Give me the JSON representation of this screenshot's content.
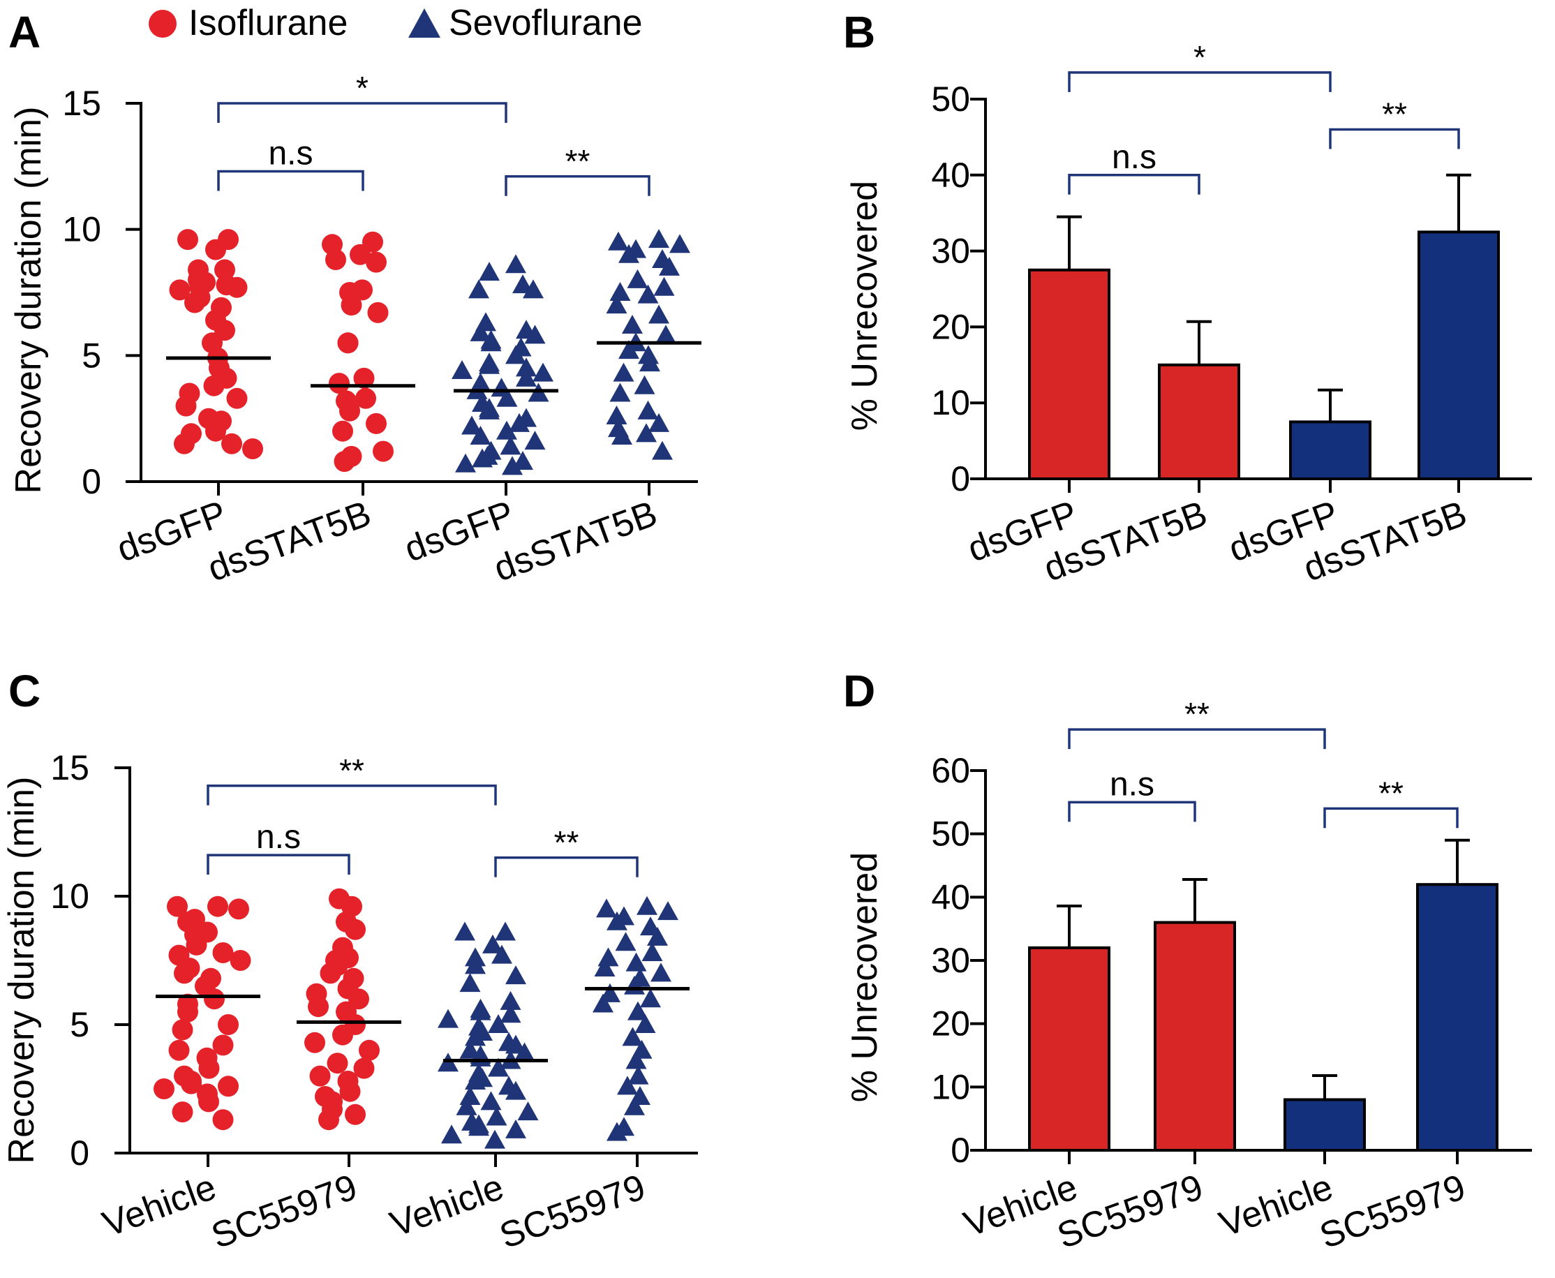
{
  "legend": [
    {
      "label": "Isoflurane",
      "marker": "circle",
      "color": "#e52229"
    },
    {
      "label": "Sevoflurane",
      "marker": "triangle",
      "color": "#1f3578"
    }
  ],
  "colors": {
    "iso": "#e52229",
    "iso_bar": "#d82626",
    "sevo": "#1f3578",
    "sevo_bar": "#12307b",
    "bracket": "#1f3578",
    "axis": "#000000"
  },
  "chart_data": [
    {
      "panel": "A",
      "type": "scatter",
      "ylabel": "Recovery duration (min)",
      "ylim": [
        0,
        15
      ],
      "yticks": [
        "0",
        "5",
        "10",
        "15"
      ],
      "categories": [
        "dsGFP",
        "dsSTAT5B",
        "dsGFP",
        "dsSTAT5B"
      ],
      "groups": [
        {
          "name": "Isoflurane dsGFP",
          "marker": "circle",
          "mean": 4.9,
          "values": [
            9.6,
            9.6,
            9.2,
            8.4,
            8.4,
            8.0,
            7.9,
            7.8,
            7.7,
            7.7,
            7.6,
            7.3,
            7.1,
            6.9,
            6.4,
            6.0,
            5.5,
            4.9,
            4.5,
            4.1,
            3.8,
            3.5,
            3.3,
            3.0,
            2.5,
            2.4,
            2.0,
            1.9,
            1.5,
            1.5,
            1.3
          ]
        },
        {
          "name": "Isoflurane dsSTAT5B",
          "marker": "circle",
          "mean": 3.8,
          "values": [
            9.5,
            9.4,
            9.0,
            8.8,
            8.7,
            7.6,
            7.5,
            7.0,
            6.7,
            5.5,
            5.5,
            4.1,
            3.9,
            3.3,
            3.2,
            2.8,
            2.3,
            2.0,
            1.2,
            1.0,
            0.8
          ]
        },
        {
          "name": "Sevoflurane dsGFP",
          "marker": "triangle",
          "mean": 3.6,
          "values": [
            8.6,
            8.3,
            7.8,
            7.6,
            7.6,
            6.3,
            6.0,
            5.9,
            5.8,
            5.6,
            5.5,
            5.3,
            5.0,
            4.7,
            4.6,
            4.5,
            4.4,
            4.3,
            4.1,
            3.9,
            3.7,
            3.6,
            3.5,
            3.3,
            3.1,
            2.9,
            2.8,
            2.5,
            2.3,
            2.2,
            2.0,
            1.8,
            1.6,
            1.4,
            1.2,
            1.0,
            0.9,
            0.8,
            0.7,
            0.6
          ]
        },
        {
          "name": "Sevoflurane dsSTAT5B",
          "marker": "triangle",
          "mean": 5.5,
          "values": [
            9.6,
            9.5,
            9.4,
            9.2,
            9.0,
            8.8,
            8.5,
            8.0,
            7.7,
            7.5,
            7.4,
            7.0,
            6.6,
            6.2,
            5.8,
            5.5,
            5.2,
            5.0,
            4.7,
            4.3,
            3.8,
            3.5,
            2.8,
            2.6,
            2.3,
            2.1,
            1.9,
            1.8,
            1.2
          ]
        }
      ],
      "comparisons": [
        {
          "from": 0,
          "to": 2,
          "label": "*",
          "level": 15
        },
        {
          "from": 0,
          "to": 1,
          "label": "n.s",
          "level": 12.3
        },
        {
          "from": 2,
          "to": 3,
          "label": "**",
          "level": 12.1
        }
      ]
    },
    {
      "panel": "B",
      "type": "bar",
      "ylabel": "% Unrecovered",
      "ylim": [
        0,
        50
      ],
      "yticks": [
        "0",
        "10",
        "20",
        "30",
        "40",
        "50"
      ],
      "categories": [
        "dsGFP",
        "dsSTAT5B",
        "dsGFP",
        "dsSTAT5B"
      ],
      "values": [
        27.5,
        15.0,
        7.5,
        32.5
      ],
      "errors": [
        7.0,
        5.7,
        4.2,
        7.5
      ],
      "groups": [
        "Isoflurane",
        "Isoflurane",
        "Sevoflurane",
        "Sevoflurane"
      ],
      "comparisons": [
        {
          "from": 0,
          "to": 2,
          "label": "*",
          "level": 53.5
        },
        {
          "from": 0,
          "to": 1,
          "label": "n.s",
          "level": 40.0
        },
        {
          "from": 2,
          "to": 3,
          "label": "**",
          "level": 46.0
        }
      ]
    },
    {
      "panel": "C",
      "type": "scatter",
      "ylabel": "Recovery duration (min)",
      "ylim": [
        0,
        15
      ],
      "yticks": [
        "0",
        "5",
        "10",
        "15"
      ],
      "categories": [
        "Vehicle",
        "SC55979",
        "Vehicle",
        "SC55979"
      ],
      "groups": [
        {
          "name": "Isoflurane Vehicle",
          "marker": "circle",
          "mean": 6.1,
          "values": [
            9.6,
            9.6,
            9.5,
            9.1,
            9.0,
            8.6,
            8.5,
            8.1,
            7.8,
            7.7,
            7.5,
            7.2,
            7.0,
            6.8,
            6.5,
            6.0,
            5.8,
            5.5,
            5.0,
            4.8,
            4.2,
            4.0,
            3.7,
            3.3,
            3.0,
            2.8,
            2.7,
            2.6,
            2.5,
            2.3,
            2.0,
            1.6,
            1.3
          ]
        },
        {
          "name": "Isoflurane SC55979",
          "marker": "circle",
          "mean": 5.1,
          "values": [
            9.9,
            9.6,
            9.0,
            8.7,
            8.0,
            7.6,
            7.5,
            7.3,
            7.0,
            6.8,
            6.4,
            6.2,
            6.0,
            5.7,
            5.5,
            5.0,
            4.6,
            4.3,
            4.0,
            3.5,
            3.3,
            3.0,
            2.8,
            2.4,
            2.2,
            2.0,
            1.7,
            1.5,
            1.3
          ]
        },
        {
          "name": "Sevoflurane Vehicle",
          "marker": "triangle",
          "mean": 3.6,
          "values": [
            8.6,
            8.6,
            8.1,
            7.7,
            7.6,
            7.3,
            6.9,
            6.6,
            5.9,
            5.6,
            5.5,
            5.4,
            5.2,
            5.0,
            4.9,
            4.7,
            4.5,
            4.3,
            4.2,
            4.0,
            3.9,
            3.8,
            3.7,
            3.6,
            3.5,
            3.3,
            3.1,
            2.9,
            2.8,
            2.6,
            2.4,
            2.2,
            2.0,
            1.8,
            1.6,
            1.4,
            1.2,
            1.1,
            1.0,
            0.9,
            0.7,
            0.5
          ]
        },
        {
          "name": "Sevoflurane SC55979",
          "marker": "triangle",
          "mean": 6.4,
          "values": [
            9.6,
            9.5,
            9.4,
            9.2,
            9.0,
            8.8,
            8.4,
            8.2,
            7.8,
            7.6,
            7.4,
            7.2,
            7.0,
            6.8,
            6.5,
            6.2,
            6.0,
            5.8,
            5.5,
            5.0,
            4.5,
            4.0,
            3.6,
            3.0,
            2.6,
            2.2,
            1.8,
            1.0,
            0.8
          ]
        }
      ],
      "comparisons": [
        {
          "from": 0,
          "to": 2,
          "label": "**",
          "level": 14.3
        },
        {
          "from": 0,
          "to": 1,
          "label": "n.s",
          "level": 11.6
        },
        {
          "from": 2,
          "to": 3,
          "label": "**",
          "level": 11.5
        }
      ]
    },
    {
      "panel": "D",
      "type": "bar",
      "ylabel": "% Unrecovered",
      "ylim": [
        0,
        60
      ],
      "yticks": [
        "0",
        "10",
        "20",
        "30",
        "40",
        "50",
        "60"
      ],
      "categories": [
        "Vehicle",
        "SC55979",
        "Vehicle",
        "SC55979"
      ],
      "values": [
        32.0,
        36.0,
        8.0,
        42.0
      ],
      "errors": [
        6.6,
        6.8,
        3.8,
        7.0
      ],
      "groups": [
        "Isoflurane",
        "Isoflurane",
        "Sevoflurane",
        "Sevoflurane"
      ],
      "comparisons": [
        {
          "from": 0,
          "to": 2,
          "label": "**",
          "level": 66.5
        },
        {
          "from": 0,
          "to": 1,
          "label": "n.s",
          "level": 55.0
        },
        {
          "from": 2,
          "to": 3,
          "label": "**",
          "level": 54.0
        }
      ]
    }
  ]
}
